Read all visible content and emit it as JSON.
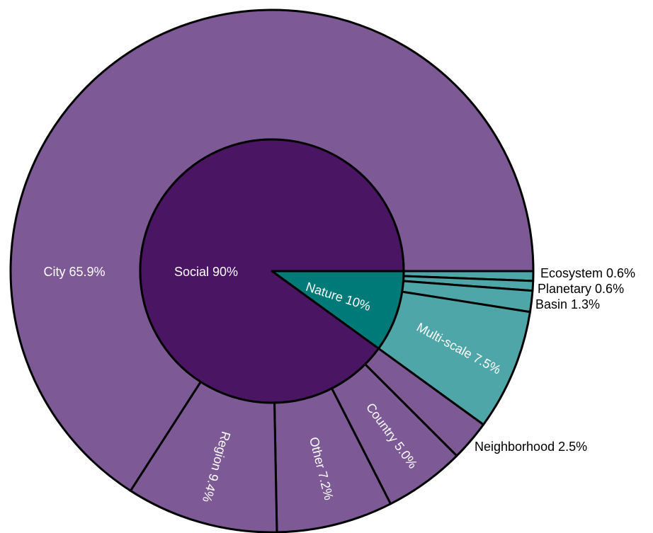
{
  "chart_data": {
    "type": "sunburst",
    "inner": [
      {
        "name": "Social",
        "value": 90,
        "label": "Social 90%",
        "color": "#4a1563"
      },
      {
        "name": "Nature",
        "value": 10,
        "label": "Nature 10%",
        "color": "#007a78"
      }
    ],
    "outer": [
      {
        "parent": "Nature",
        "name": "Ecosystem",
        "value": 0.6,
        "label": "Ecosystem 0.6%",
        "color": "#4fa6a8",
        "label_mode": "outside"
      },
      {
        "parent": "Nature",
        "name": "Planetary",
        "value": 0.6,
        "label": "Planetary 0.6%",
        "color": "#4fa6a8",
        "label_mode": "outside"
      },
      {
        "parent": "Nature",
        "name": "Basin",
        "value": 1.3,
        "label": "Basin 1.3%",
        "color": "#4fa6a8",
        "label_mode": "outside"
      },
      {
        "parent": "Nature",
        "name": "Multi-scale",
        "value": 7.5,
        "label": "Multi-scale 7.5%",
        "color": "#4fa6a8",
        "label_mode": "tangential"
      },
      {
        "parent": "Social",
        "name": "Neighborhood",
        "value": 2.5,
        "label": "Neighborhood 2.5%",
        "color": "#7d5a96",
        "label_mode": "outside"
      },
      {
        "parent": "Social",
        "name": "Country",
        "value": 5.0,
        "label": "Country 5.0%",
        "color": "#7d5a96",
        "label_mode": "radial"
      },
      {
        "parent": "Social",
        "name": "Other",
        "value": 7.2,
        "label": "Other 7.2%",
        "color": "#7d5a96",
        "label_mode": "radial"
      },
      {
        "parent": "Social",
        "name": "Region",
        "value": 9.4,
        "label": "Region 9.4%",
        "color": "#7d5a96",
        "label_mode": "radial"
      },
      {
        "parent": "Social",
        "name": "City",
        "value": 65.9,
        "label": "City 65.9%",
        "color": "#7d5a96",
        "label_mode": "horizontal"
      }
    ]
  }
}
